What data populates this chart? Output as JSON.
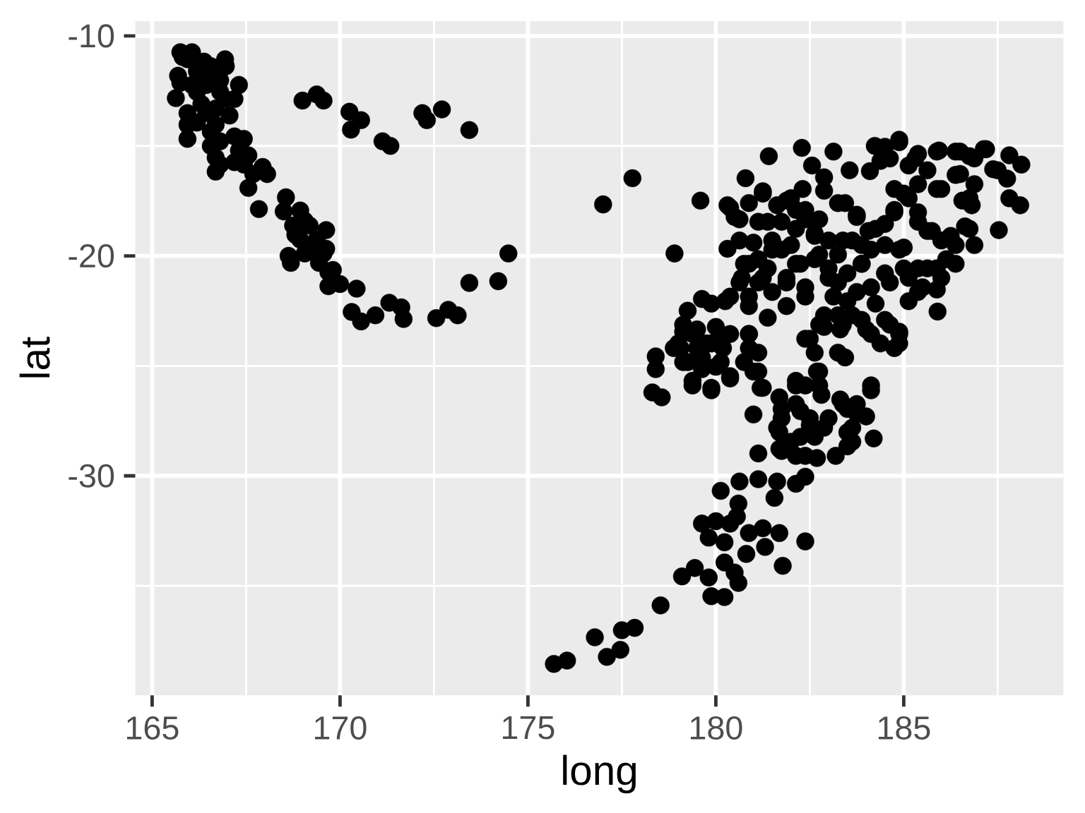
{
  "chart_data": {
    "type": "scatter",
    "xlabel": "long",
    "ylabel": "lat",
    "xlim": [
      164.55,
      189.25
    ],
    "ylim": [
      -39.98,
      -9.33
    ],
    "xticks": [
      165,
      170,
      175,
      180,
      185
    ],
    "yticks": [
      -30,
      -20,
      -10
    ],
    "grid": true,
    "color": "#000000",
    "x": [
      165.75,
      166.06,
      165.94,
      166.38,
      166.94,
      166.96,
      165.69,
      165.75,
      166.19,
      166.56,
      167.31,
      165.63,
      166.19,
      166.81,
      167.19,
      165.94,
      166.44,
      165.94,
      165.94,
      166.69,
      167.06,
      166.56,
      167.44,
      166.69,
      167.31,
      166.69,
      167.19,
      167.56,
      167.94,
      168.06,
      167.56,
      167.84,
      168.56,
      168.5,
      168.94,
      168.75,
      169.19,
      169.63,
      168.94,
      169.38,
      168.63,
      168.69,
      169.06,
      169.63,
      169.44,
      169.81,
      169.69,
      170.0,
      170.44,
      170.31,
      170.56,
      170.94,
      171.31,
      171.63,
      171.69,
      172.56,
      172.88,
      173.13,
      173.44,
      169.0,
      169.38,
      169.56,
      170.25,
      170.56,
      170.29,
      171.13,
      171.34,
      172.19,
      172.31,
      172.71,
      173.44,
      174.48,
      174.21,
      177.0,
      177.78,
      179.59,
      178.9,
      180.79,
      181.41,
      182.29,
      183.13,
      182.56,
      182.88,
      182.31,
      182.88,
      180.31,
      180.88,
      181.25,
      181.88,
      182.13,
      180.5,
      181.38,
      182.38,
      182.63,
      183.25,
      180.31,
      180.63,
      181.0,
      181.5,
      182.0,
      183.0,
      180.88,
      181.38,
      182.13,
      182.63,
      183.25,
      180.69,
      181.13,
      181.88,
      182.38,
      183.0,
      183.13,
      180.38,
      179.63,
      179.88,
      179.25,
      180.88,
      181.38,
      181.88,
      179.13,
      179.5,
      180.0,
      180.38,
      180.88,
      179.06,
      179.5,
      179.88,
      180.19,
      180.88,
      181.13,
      182.5,
      182.88,
      183.25,
      183.25,
      178.4,
      178.4,
      179.25,
      179.63,
      180.13,
      180.38,
      179.38,
      179.88,
      181.0,
      181.19,
      181.69,
      182.13,
      182.69,
      182.81,
      183.31,
      178.31,
      178.56,
      184.23,
      184.88,
      184.63,
      185.31,
      183.56,
      184.1,
      185.94,
      186.5,
      187.19,
      186.88,
      187.81,
      188.13,
      187.75,
      187.38,
      186.5,
      186.88,
      185.63,
      185.0,
      186.0,
      186.56,
      186.81,
      187.81,
      188.1,
      186.75,
      186.88,
      187.53,
      184.75,
      185.38,
      183.44,
      183.75,
      184.5,
      184.06,
      186.0,
      186.38,
      185.63,
      183.63,
      184.13,
      184.88,
      183.88,
      184.5,
      185.0,
      185.63,
      186.38,
      186.0,
      185.38,
      185.88,
      185.13,
      185.9,
      183.25,
      183.75,
      184.25,
      183.88,
      184.63,
      184.13,
      184.88,
      184.88,
      183.31,
      183.44,
      184.13,
      182.75,
      181.0,
      181.75,
      182.25,
      182.5,
      182.88,
      183.38,
      183.75,
      183.5,
      183.63,
      181.69,
      182.25,
      181.13,
      181.69,
      182.13,
      182.69,
      183.19,
      180.63,
      181.13,
      181.63,
      182.13,
      182.38,
      181.56,
      180.13,
      180.6,
      180.56,
      179.63,
      180.0,
      180.38,
      179.81,
      180.23,
      180.88,
      181.25,
      181.69,
      180.81,
      181.31,
      182.38,
      181.78,
      179.1,
      179.44,
      179.81,
      180.23,
      180.5,
      180.6,
      179.88,
      180.23,
      178.53,
      176.78,
      177.5,
      177.84,
      177.46,
      177.1,
      175.69,
      176.04,
      184.0,
      184.2,
      184.5,
      184.88,
      185.38,
      185.88,
      186.38,
      186.75,
      187.13,
      184.38,
      185.13,
      186.38,
      186.75,
      187.5,
      185.88,
      184.75,
      180.38,
      181.25,
      181.63,
      182.0,
      182.38,
      182.75,
      181.13,
      181.75,
      182.13,
      182.63,
      180.63,
      181.5,
      183.75,
      184.25,
      184.75,
      185.13,
      185.38,
      185.75,
      186.25,
      186.63,
      183.88,
      184.5,
      185.0,
      185.38,
      186.13,
      183.38,
      185.38,
      180.75,
      181.13,
      181.75,
      182.25,
      182.75,
      180.63,
      181.25,
      181.88,
      182.38,
      183.0,
      183.5,
      183.88,
      184.13,
      184.63,
      185.13,
      185.5,
      185.88,
      180.25,
      180.88,
      181.5,
      183.5,
      183.63,
      184.0,
      184.5,
      184.88,
      184.75,
      184.38,
      183.38,
      179.13,
      179.0,
      179.38,
      179.75,
      180.13,
      179.13,
      179.63,
      180.0,
      179.38,
      179.88,
      180.38,
      178.88,
      180.88,
      181.13,
      180.75,
      181.25,
      182.38,
      182.75,
      182.63,
      182.75,
      182.38,
      182.13,
      182.88,
      181.75,
      182.13,
      182.5,
      183.0,
      183.5,
      183.63,
      183.5,
      181.63,
      182.0,
      182.63,
      182.38,
      181.75,
      183.75,
      184.13,
      165.81,
      166.56,
      166.06,
      166.44,
      166.81,
      166.31,
      166.69,
      166.94,
      166.19,
      166.56,
      166.81,
      167.19,
      167.44,
      167.69,
      166.81,
      169.06,
      169.19,
      169.56,
      169.69,
      168.81
    ],
    "values": [
      -10.74,
      -10.74,
      -11.06,
      -11.17,
      -11.06,
      -11.38,
      -11.81,
      -12.13,
      -11.6,
      -11.81,
      -12.23,
      -12.83,
      -12.55,
      -12.55,
      -12.87,
      -13.51,
      -13.51,
      -14.04,
      -14.68,
      -14.04,
      -13.62,
      -15.0,
      -14.68,
      -15.53,
      -15.21,
      -16.17,
      -15.74,
      -15.43,
      -15.96,
      -16.28,
      -16.91,
      -17.87,
      -17.34,
      -17.98,
      -17.94,
      -18.62,
      -18.62,
      -18.83,
      -19.26,
      -19.26,
      -20.0,
      -20.32,
      -19.89,
      -19.68,
      -20.32,
      -20.64,
      -21.38,
      -21.28,
      -21.49,
      -22.55,
      -22.98,
      -22.7,
      -22.13,
      -22.34,
      -22.87,
      -22.83,
      -22.45,
      -22.7,
      -21.23,
      -12.94,
      -12.66,
      -12.94,
      -13.45,
      -13.83,
      -14.26,
      -14.79,
      -15.0,
      -13.51,
      -13.83,
      -13.34,
      -14.28,
      -19.89,
      -21.15,
      -17.66,
      -16.47,
      -17.49,
      -19.89,
      -16.47,
      -15.47,
      -15.09,
      -15.26,
      -15.89,
      -16.43,
      -16.96,
      -17.04,
      -17.7,
      -17.6,
      -17.06,
      -17.49,
      -17.91,
      -18.23,
      -18.45,
      -18.34,
      -18.98,
      -17.6,
      -19.68,
      -19.3,
      -19.4,
      -19.72,
      -19.51,
      -19.3,
      -20.36,
      -20.57,
      -20.36,
      -20.15,
      -19.94,
      -21.0,
      -21.21,
      -21.21,
      -21.85,
      -21.0,
      -21.85,
      -21.85,
      -21.96,
      -22.17,
      -22.49,
      -22.28,
      -22.81,
      -22.28,
      -23.45,
      -23.34,
      -23.23,
      -23.55,
      -23.55,
      -24.19,
      -24.19,
      -23.98,
      -24.19,
      -24.19,
      -24.4,
      -23.77,
      -23.23,
      -22.7,
      -24.4,
      -24.57,
      -25.15,
      -24.83,
      -25.15,
      -24.83,
      -25.57,
      -25.89,
      -26.0,
      -25.26,
      -26.0,
      -26.43,
      -25.89,
      -25.26,
      -26.32,
      -26.53,
      -26.21,
      -26.43,
      -15.0,
      -14.72,
      -15.57,
      -15.57,
      -16.11,
      -16.15,
      -15.21,
      -15.26,
      -15.15,
      -15.57,
      -15.43,
      -15.85,
      -16.49,
      -16.06,
      -16.28,
      -16.74,
      -16.11,
      -17.17,
      -16.96,
      -17.49,
      -17.7,
      -17.38,
      -17.7,
      -18.77,
      -19.51,
      -18.83,
      -17.91,
      -18.02,
      -17.6,
      -18.13,
      -18.55,
      -18.87,
      -19.3,
      -19.51,
      -18.87,
      -19.3,
      -19.72,
      -19.72,
      -20.36,
      -20.79,
      -20.57,
      -20.57,
      -20.36,
      -21.0,
      -21.64,
      -21.53,
      -22.06,
      -22.53,
      -21.21,
      -21.64,
      -22.17,
      -22.91,
      -23.13,
      -23.55,
      -23.45,
      -23.98,
      -23.34,
      -24.62,
      -25.89,
      -25.89,
      -27.21,
      -27.38,
      -27.06,
      -27.7,
      -27.81,
      -26.74,
      -27.17,
      -28.02,
      -28.45,
      -28.02,
      -28.23,
      -28.98,
      -28.77,
      -29.09,
      -29.19,
      -29.09,
      -30.26,
      -30.15,
      -30.26,
      -30.36,
      -30.04,
      -31.0,
      -30.68,
      -31.26,
      -31.85,
      -32.17,
      -32.06,
      -32.17,
      -32.81,
      -33.02,
      -32.6,
      -32.38,
      -32.6,
      -33.55,
      -33.23,
      -32.98,
      -34.09,
      -34.57,
      -34.19,
      -34.62,
      -33.94,
      -34.4,
      -34.87,
      -35.47,
      -35.51,
      -35.89,
      -37.34,
      -37.02,
      -36.91,
      -37.91,
      -38.23,
      -38.55,
      -38.4,
      -27.3,
      -28.3,
      -15.04,
      -14.83,
      -15.36,
      -15.26,
      -15.26,
      -15.47,
      -15.15,
      -15.68,
      -15.89,
      -16.32,
      -17.38,
      -16.11,
      -16.96,
      -16.96,
      -17.81,
      -17.17,
      -17.7,
      -17.38,
      -17.91,
      -18.34,
      -18.45,
      -18.45,
      -18.77,
      -19.09,
      -18.34,
      -19.3,
      -18.23,
      -18.77,
      -18.02,
      -17.38,
      -18.45,
      -18.87,
      -19.09,
      -18.66,
      -19.51,
      -19.51,
      -19.62,
      -20.57,
      -20.15,
      -19.3,
      -16.74,
      -20.36,
      -20.15,
      -19.72,
      -20.36,
      -19.94,
      -21.21,
      -21.0,
      -21.0,
      -21.43,
      -20.57,
      -20.79,
      -20.36,
      -21.43,
      -21.21,
      -21.0,
      -21.43,
      -20.57,
      -22.06,
      -21.85,
      -21.64,
      -22.06,
      -22.7,
      -23.34,
      -22.91,
      -23.55,
      -24.19,
      -23.98,
      -23.13,
      -23.13,
      -23.98,
      -23.55,
      -23.98,
      -23.55,
      -24.83,
      -24.62,
      -25.04,
      -25.68,
      -26.11,
      -25.47,
      -24.19,
      -23.55,
      -25.26,
      -24.83,
      -26.0,
      -23.77,
      -23.13,
      -24.4,
      -25.26,
      -25.89,
      -25.68,
      -22.7,
      -26.96,
      -26.74,
      -27.38,
      -27.38,
      -26.96,
      -27.81,
      -28.66,
      -27.81,
      -28.45,
      -28.23,
      -29.09,
      -28.87,
      -26.74,
      -26.11,
      -10.96,
      -11.38,
      -12.23,
      -12.23,
      -12.02,
      -13.09,
      -13.3,
      -12.87,
      -13.94,
      -14.36,
      -14.79,
      -14.57,
      -15.85,
      -16.28,
      -15.85,
      -18.4,
      -19.68,
      -19.89,
      -20.74,
      -19.04
    ]
  }
}
